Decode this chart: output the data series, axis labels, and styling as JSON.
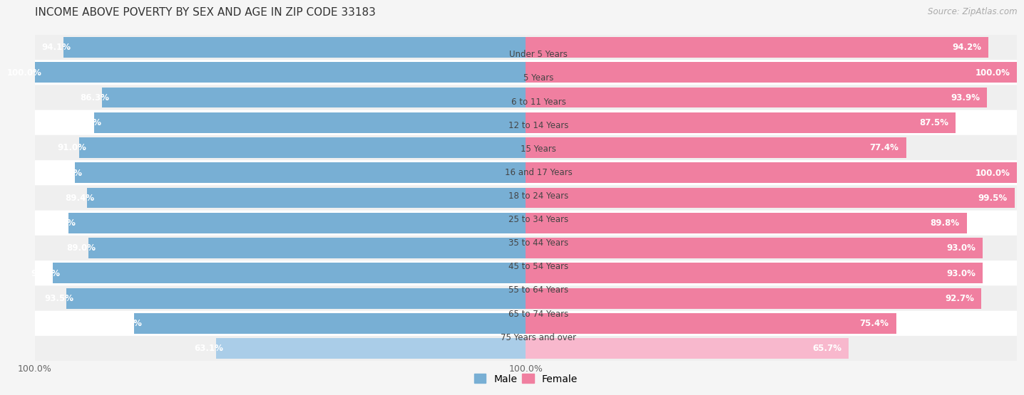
{
  "title": "INCOME ABOVE POVERTY BY SEX AND AGE IN ZIP CODE 33183",
  "source": "Source: ZipAtlas.com",
  "categories": [
    "Under 5 Years",
    "5 Years",
    "6 to 11 Years",
    "12 to 14 Years",
    "15 Years",
    "16 and 17 Years",
    "18 to 24 Years",
    "25 to 34 Years",
    "35 to 44 Years",
    "45 to 54 Years",
    "55 to 64 Years",
    "65 to 74 Years",
    "75 Years and over"
  ],
  "male_values": [
    94.1,
    100.0,
    86.3,
    87.9,
    91.0,
    91.8,
    89.4,
    93.1,
    89.0,
    96.3,
    93.5,
    79.7,
    63.1
  ],
  "female_values": [
    94.2,
    100.0,
    93.9,
    87.5,
    77.4,
    100.0,
    99.5,
    89.8,
    93.0,
    93.0,
    92.7,
    75.4,
    65.7
  ],
  "male_color": "#78afd4",
  "female_color": "#f07fa0",
  "male_light_color": "#aacde8",
  "female_light_color": "#f8b8cd",
  "row_bg_odd": "#efefef",
  "row_bg_even": "#ffffff",
  "background_color": "#f5f5f5",
  "title_fontsize": 11,
  "source_fontsize": 8.5,
  "value_fontsize": 8.5,
  "cat_fontsize": 8.5,
  "axis_fontsize": 9,
  "legend_fontsize": 10
}
